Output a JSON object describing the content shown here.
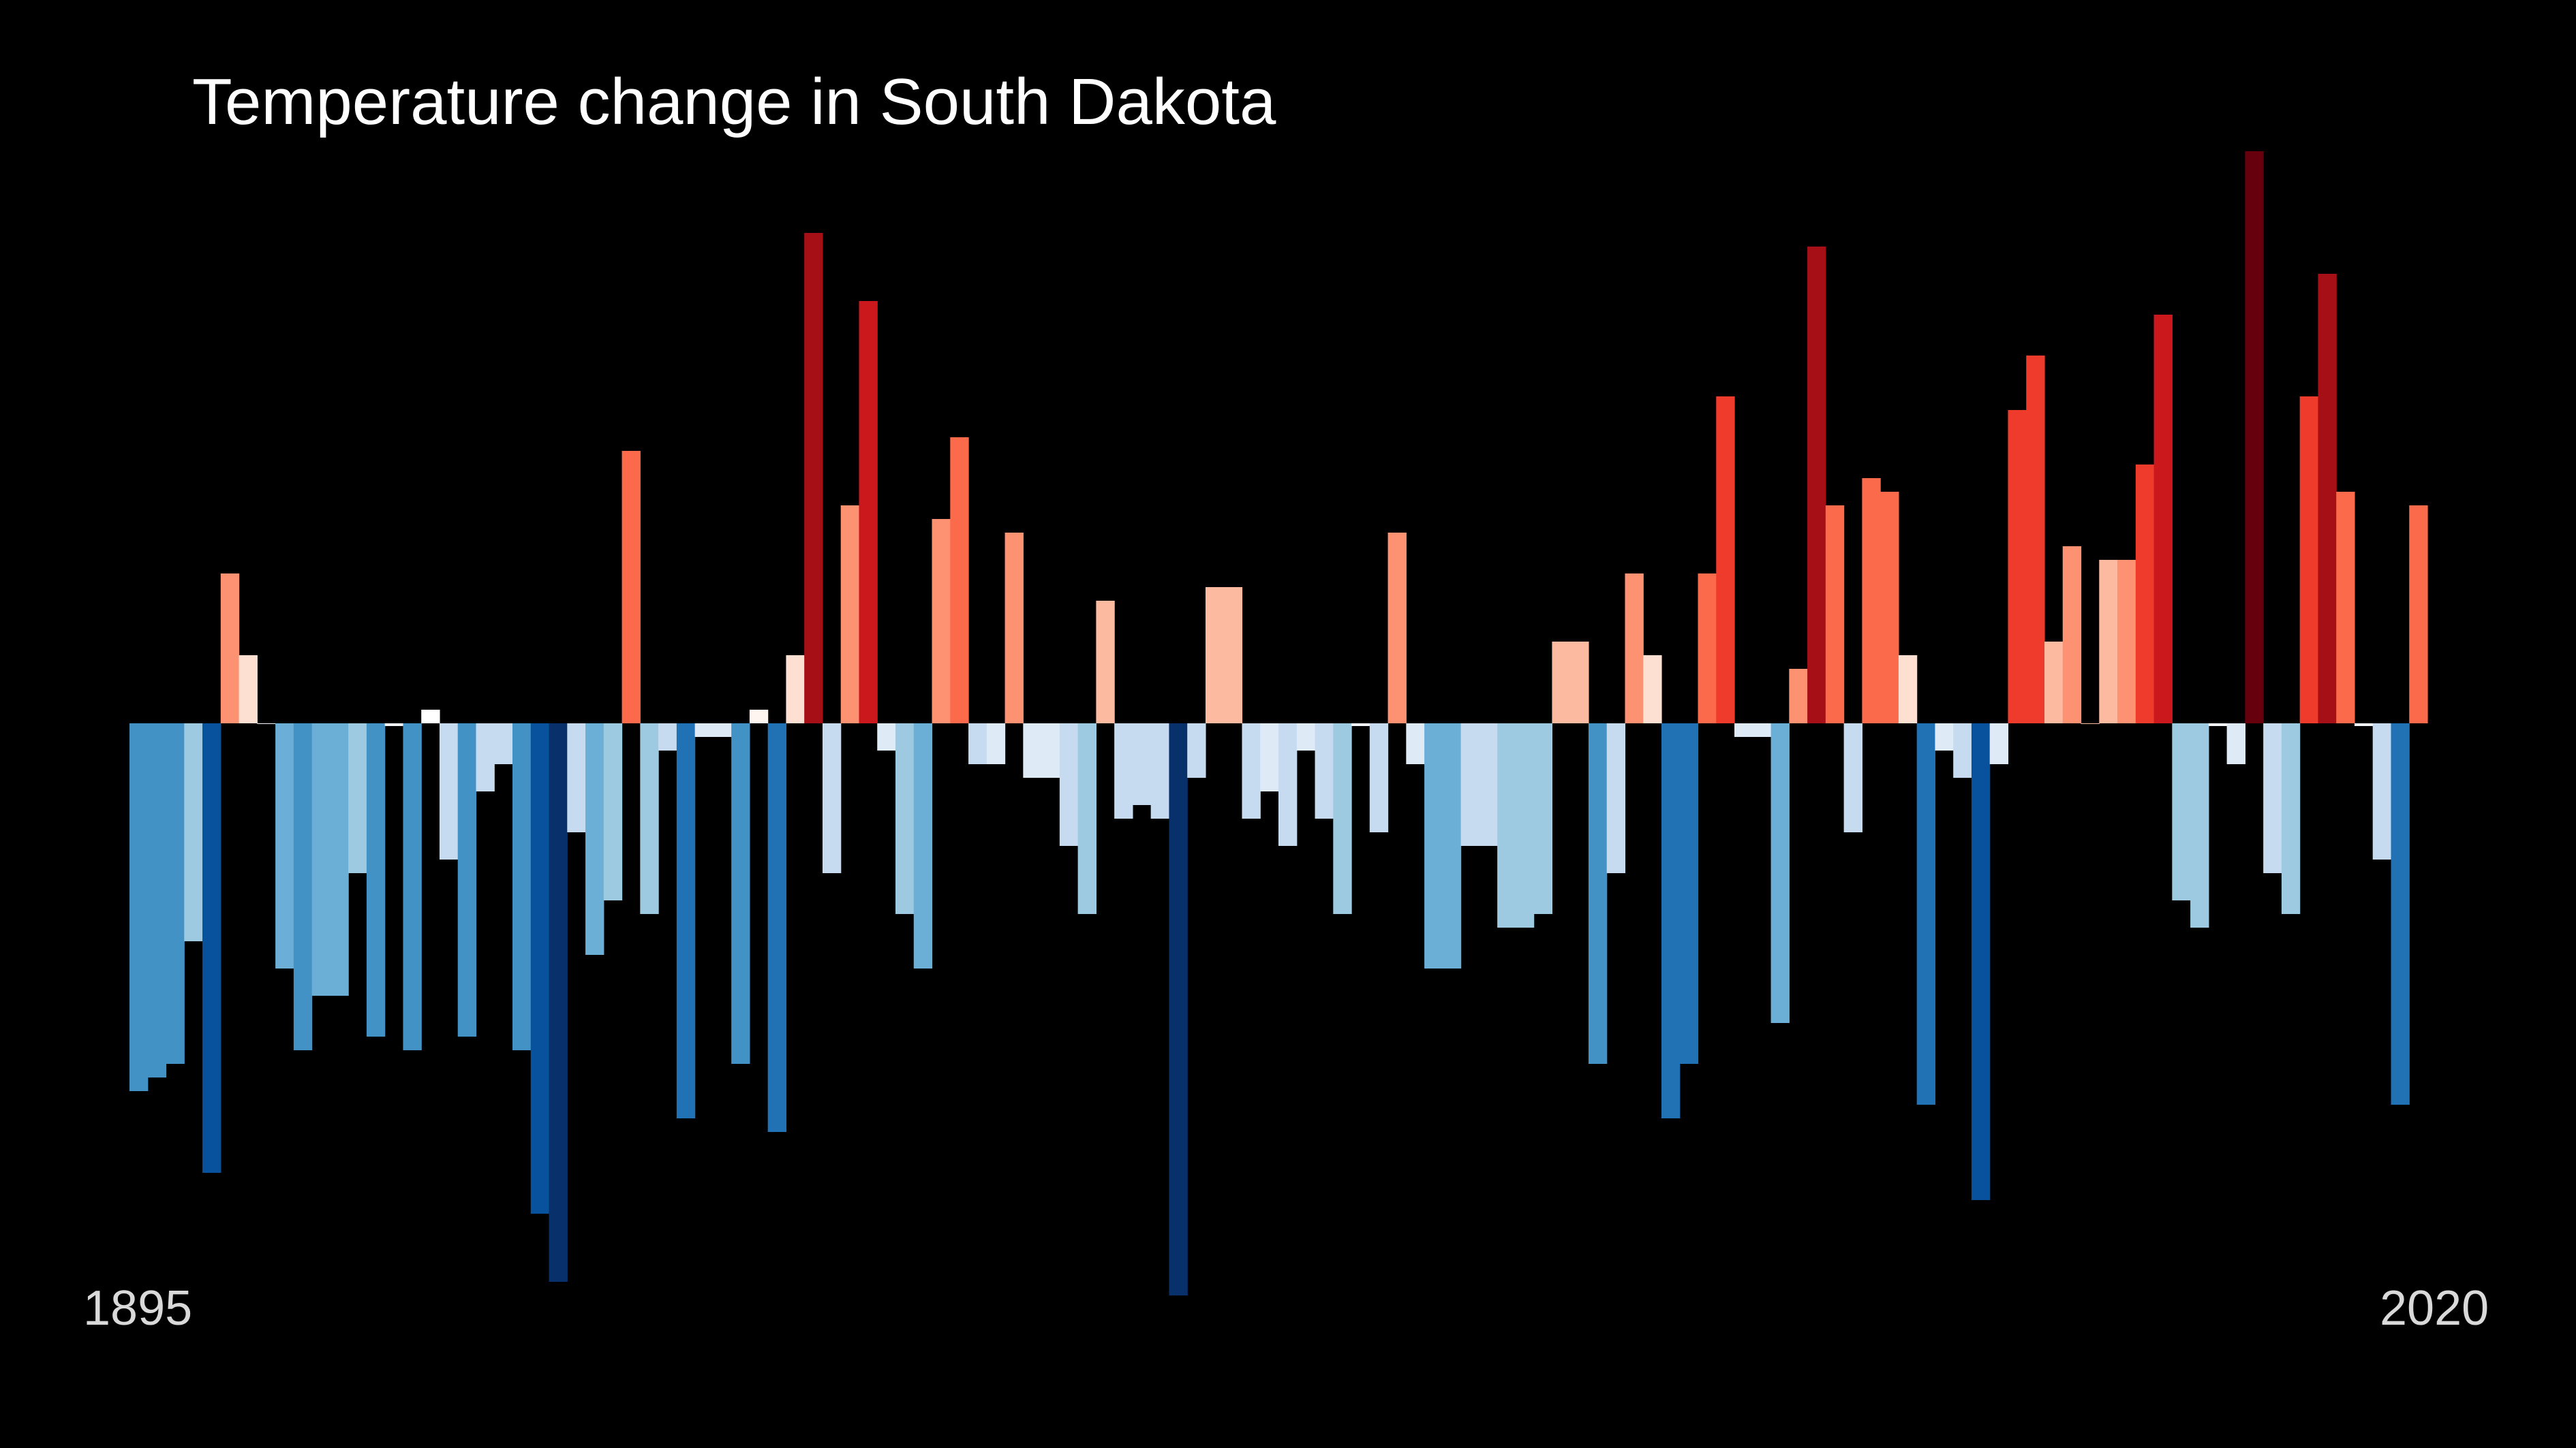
{
  "chart_data": {
    "type": "bar",
    "title": "Temperature change in South Dakota",
    "x_start_label": "1895",
    "x_end_label": "2020",
    "x": [
      1895,
      1896,
      1897,
      1898,
      1899,
      1900,
      1901,
      1902,
      1903,
      1904,
      1905,
      1906,
      1907,
      1908,
      1909,
      1910,
      1911,
      1912,
      1913,
      1914,
      1915,
      1916,
      1917,
      1918,
      1919,
      1920,
      1921,
      1922,
      1923,
      1924,
      1925,
      1926,
      1927,
      1928,
      1929,
      1930,
      1931,
      1932,
      1933,
      1934,
      1935,
      1936,
      1937,
      1938,
      1939,
      1940,
      1941,
      1942,
      1943,
      1944,
      1945,
      1946,
      1947,
      1948,
      1949,
      1950,
      1951,
      1952,
      1953,
      1954,
      1955,
      1956,
      1957,
      1958,
      1959,
      1960,
      1961,
      1962,
      1963,
      1964,
      1965,
      1966,
      1967,
      1968,
      1969,
      1970,
      1971,
      1972,
      1973,
      1974,
      1975,
      1976,
      1977,
      1978,
      1979,
      1980,
      1981,
      1982,
      1983,
      1984,
      1985,
      1986,
      1987,
      1988,
      1989,
      1990,
      1991,
      1992,
      1993,
      1994,
      1995,
      1996,
      1997,
      1998,
      1999,
      2000,
      2001,
      2002,
      2003,
      2004,
      2005,
      2006,
      2007,
      2008,
      2009,
      2010,
      2011,
      2012,
      2013,
      2014,
      2015,
      2016,
      2017,
      2018,
      2019,
      2020
    ],
    "values": [
      -2.7,
      -2.6,
      -2.5,
      -1.6,
      -3.3,
      1.1,
      0.5,
      0,
      -1.8,
      -2.4,
      -2.0,
      -2.0,
      -1.1,
      -2.3,
      -0.02,
      -2.4,
      0.1,
      -1.0,
      -2.3,
      -0.5,
      -0.3,
      -2.4,
      -3.6,
      -4.1,
      -0.8,
      -1.7,
      -1.3,
      2.0,
      -1.4,
      -0.2,
      -2.9,
      -0.1,
      -0.1,
      -2.5,
      0.1,
      -3.0,
      0.5,
      3.6,
      -1.1,
      1.6,
      3.1,
      -0.2,
      -1.4,
      -1.8,
      1.5,
      2.1,
      -0.3,
      -0.3,
      1.4,
      -0.4,
      -0.4,
      -0.9,
      -1.4,
      0.9,
      -0.7,
      -0.6,
      -0.7,
      -4.2,
      -0.4,
      1.0,
      1.0,
      -0.7,
      -0.5,
      -0.9,
      -0.2,
      -0.7,
      -1.4,
      -0.02,
      -0.8,
      1.4,
      -0.3,
      -1.8,
      -1.8,
      -0.9,
      -0.9,
      -1.5,
      -1.5,
      -1.4,
      0.6,
      0.6,
      -2.5,
      -1.1,
      1.1,
      0.5,
      -2.9,
      -2.5,
      1.1,
      2.4,
      -0.1,
      -0.1,
      -2.2,
      0.4,
      3.5,
      1.6,
      -0.8,
      1.8,
      1.7,
      0.5,
      -2.8,
      -0.2,
      -0.4,
      -3.5,
      -0.3,
      2.3,
      2.7,
      0.6,
      1.3,
      0.0,
      1.2,
      1.2,
      1.9,
      3.0,
      -1.3,
      -1.5,
      -0.02,
      -0.3,
      4.2,
      -1.1,
      -1.4,
      2.4,
      3.3,
      1.7,
      -0.02,
      -1.0,
      -2.8,
      1.6
    ],
    "colors": [
      "#4292c6",
      "#4292c6",
      "#4292c6",
      "#9ecae1",
      "#08519c",
      "#fc9272",
      "#fee0d2",
      "#f7fbff",
      "#6baed6",
      "#4292c6",
      "#6baed6",
      "#6baed6",
      "#9ecae1",
      "#4292c6",
      "#f7fbff",
      "#4292c6",
      "#ffffff",
      "#c6dbef",
      "#4292c6",
      "#c6dbef",
      "#c6dbef",
      "#4292c6",
      "#08519c",
      "#08306b",
      "#c6dbef",
      "#6baed6",
      "#9ecae1",
      "#fb6a4a",
      "#9ecae1",
      "#c6dbef",
      "#2171b5",
      "#deebf7",
      "#deebf7",
      "#4292c6",
      "#fff5f0",
      "#2171b5",
      "#fee0d2",
      "#a50f15",
      "#c6dbef",
      "#fc9272",
      "#cb181d",
      "#deebf7",
      "#9ecae1",
      "#6baed6",
      "#fc9272",
      "#fb6a4a",
      "#c6dbef",
      "#deebf7",
      "#fc9272",
      "#deebf7",
      "#deebf7",
      "#c6dbef",
      "#9ecae1",
      "#fcbba1",
      "#c6dbef",
      "#c6dbef",
      "#c6dbef",
      "#08306b",
      "#c6dbef",
      "#fcbba1",
      "#fcbba1",
      "#c6dbef",
      "#deebf7",
      "#c6dbef",
      "#deebf7",
      "#c6dbef",
      "#9ecae1",
      "#f7fbff",
      "#c6dbef",
      "#fc9272",
      "#deebf7",
      "#6baed6",
      "#6baed6",
      "#c6dbef",
      "#c6dbef",
      "#9ecae1",
      "#9ecae1",
      "#9ecae1",
      "#fcbba1",
      "#fcbba1",
      "#4292c6",
      "#c6dbef",
      "#fc9272",
      "#fee0d2",
      "#2171b5",
      "#2171b5",
      "#fb6a4a",
      "#ef3b2c",
      "#deebf7",
      "#deebf7",
      "#6baed6",
      "#fc9272",
      "#a50f15",
      "#fb6a4a",
      "#c6dbef",
      "#fb6a4a",
      "#fb6a4a",
      "#fee0d2",
      "#2171b5",
      "#deebf7",
      "#c6dbef",
      "#08519c",
      "#deebf7",
      "#ef3b2c",
      "#ef3b2c",
      "#fcbba1",
      "#fc9272",
      "#fcbba1",
      "#fcbba1",
      "#fc9272",
      "#ef3b2c",
      "#cb181d",
      "#9ecae1",
      "#9ecae1",
      "#f7fbff",
      "#deebf7",
      "#67000d",
      "#c6dbef",
      "#9ecae1",
      "#ef3b2c",
      "#a50f15",
      "#fb6a4a",
      "#f7fbff",
      "#c6dbef",
      "#2171b5",
      "#fb6a4a"
    ]
  }
}
